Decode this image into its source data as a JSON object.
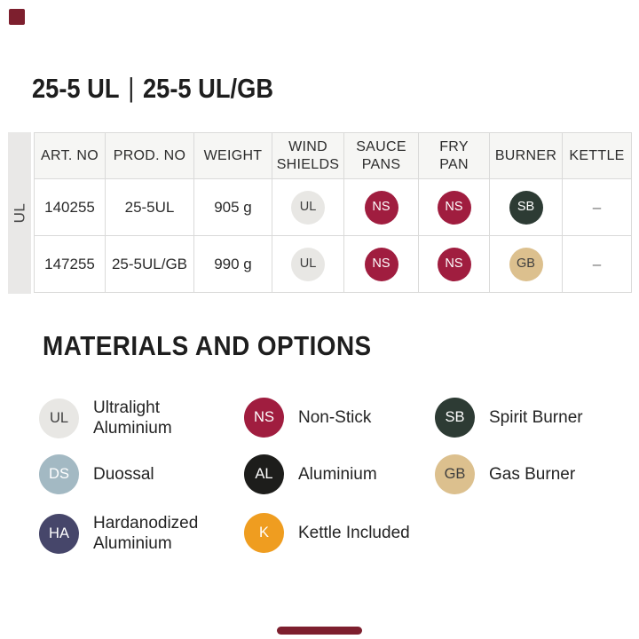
{
  "title": {
    "left": "25-5 UL",
    "separator": "|",
    "right": "25-5 UL/GB"
  },
  "series_label": "UL",
  "brand_color": "#7d1f2e",
  "table": {
    "headers": [
      "ART. NO",
      "PROD. NO",
      "WEIGHT",
      "WIND\nSHIELDS",
      "SAUCE\nPANS",
      "FRY\nPAN",
      "BURNER",
      "KETTLE"
    ],
    "rows": [
      {
        "art_no": "140255",
        "prod_no": "25-5UL",
        "weight": "905 g",
        "wind_shields": "UL",
        "sauce_pans": "NS",
        "fry_pan": "NS",
        "burner": "SB",
        "kettle": "–"
      },
      {
        "art_no": "147255",
        "prod_no": "25-5UL/GB",
        "weight": "990 g",
        "wind_shields": "UL",
        "sauce_pans": "NS",
        "fry_pan": "NS",
        "burner": "GB",
        "kettle": "–"
      }
    ]
  },
  "badge_colors": {
    "UL": {
      "bg": "#e8e7e4",
      "fg": "#3f3f3f"
    },
    "DS": {
      "bg": "#a3b9c3",
      "fg": "#ffffff"
    },
    "HA": {
      "bg": "#46466a",
      "fg": "#ffffff"
    },
    "NS": {
      "bg": "#a01d3f",
      "fg": "#ffffff"
    },
    "AL": {
      "bg": "#1d1d1b",
      "fg": "#ffffff"
    },
    "K": {
      "bg": "#ef9d20",
      "fg": "#ffffff"
    },
    "SB": {
      "bg": "#2d3b34",
      "fg": "#ffffff"
    },
    "GB": {
      "bg": "#dcc08e",
      "fg": "#3f3f3f"
    }
  },
  "materials": {
    "heading": "MATERIALS AND OPTIONS",
    "legend": [
      {
        "code": "UL",
        "label": "Ultralight\nAluminium"
      },
      {
        "code": "DS",
        "label": "Duossal"
      },
      {
        "code": "HA",
        "label": "Hardanodized\nAluminium"
      },
      {
        "code": "NS",
        "label": "Non-Stick"
      },
      {
        "code": "AL",
        "label": "Aluminium"
      },
      {
        "code": "K",
        "label": "Kettle Included"
      },
      {
        "code": "SB",
        "label": "Spirit Burner"
      },
      {
        "code": "GB",
        "label": "Gas Burner"
      }
    ]
  }
}
